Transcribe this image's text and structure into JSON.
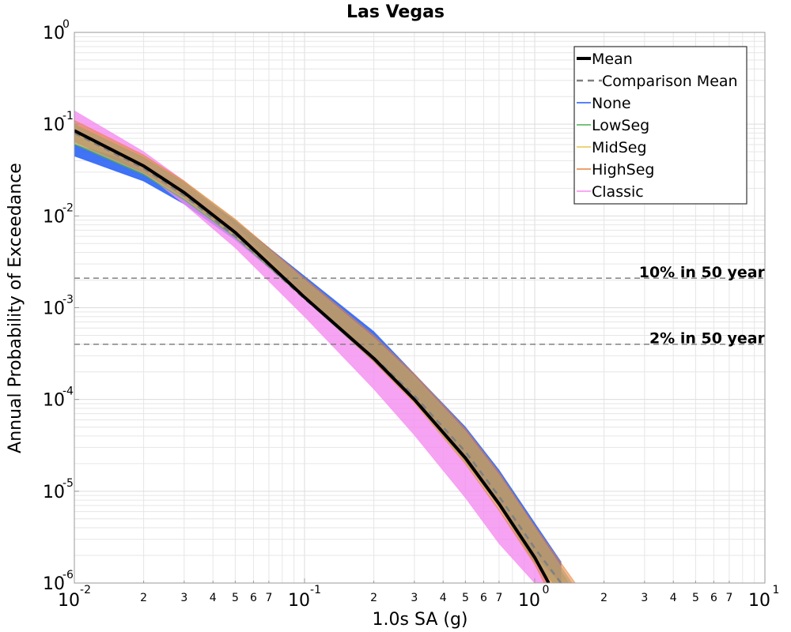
{
  "chart_data": {
    "type": "line",
    "title": "Las Vegas",
    "xlabel": "1.0s SA (g)",
    "ylabel": "Annual Probability of Exceedance",
    "xscale": "log",
    "yscale": "log",
    "xlim": [
      0.01,
      10
    ],
    "ylim": [
      1e-06,
      1
    ],
    "grid": true,
    "legend_position": "top-right",
    "x_major_ticks": [
      {
        "base": "10",
        "exp": "-2",
        "value": 0.01
      },
      {
        "base": "10",
        "exp": "-1",
        "value": 0.1
      },
      {
        "base": "10",
        "exp": "0",
        "value": 1
      },
      {
        "base": "10",
        "exp": "1",
        "value": 10
      }
    ],
    "x_minor_tick_labels": [
      "2",
      "3",
      "4",
      "5",
      "6",
      "7"
    ],
    "y_major_ticks": [
      {
        "base": "10",
        "exp": "0",
        "value": 1
      },
      {
        "base": "10",
        "exp": "-1",
        "value": 0.1
      },
      {
        "base": "10",
        "exp": "-2",
        "value": 0.01
      },
      {
        "base": "10",
        "exp": "-3",
        "value": 0.001
      },
      {
        "base": "10",
        "exp": "-4",
        "value": 0.0001
      },
      {
        "base": "10",
        "exp": "-5",
        "value": 1e-05
      },
      {
        "base": "10",
        "exp": "-6",
        "value": 1e-06
      }
    ],
    "reference_lines": [
      {
        "label": "10% in 50 year",
        "y": 0.0021
      },
      {
        "label": "2% in 50 year",
        "y": 0.0004
      }
    ],
    "legend": [
      {
        "name": "Mean",
        "style": "solid-thick"
      },
      {
        "name": "Comparison Mean",
        "style": "dashed"
      },
      {
        "name": "None",
        "style": "solid"
      },
      {
        "name": "LowSeg",
        "style": "solid"
      },
      {
        "name": "MidSeg",
        "style": "solid"
      },
      {
        "name": "HighSeg",
        "style": "solid"
      },
      {
        "name": "Classic",
        "style": "solid"
      }
    ],
    "series": [
      {
        "name": "Mean",
        "x": [
          0.01,
          0.02,
          0.03,
          0.05,
          0.1,
          0.2,
          0.3,
          0.5,
          0.7,
          1.0,
          1.15
        ],
        "y": [
          0.085,
          0.035,
          0.018,
          0.0066,
          0.0013,
          0.00028,
          0.0001,
          2.3e-05,
          7.3e-06,
          1.9e-06,
          1e-06
        ]
      },
      {
        "name": "Comparison Mean",
        "x": [
          0.01,
          0.02,
          0.03,
          0.05,
          0.1,
          0.2,
          0.3,
          0.5,
          0.7,
          1.0,
          1.3
        ],
        "y": [
          0.08,
          0.033,
          0.0168,
          0.006,
          0.00125,
          0.00029,
          0.00011,
          2.7e-05,
          8.8e-06,
          2.4e-06,
          1e-06
        ]
      },
      {
        "name": "None",
        "lower": {
          "x": [
            0.01,
            0.02,
            0.03,
            0.05,
            0.1,
            0.2,
            0.3,
            0.5,
            0.7,
            1.0,
            1.3
          ],
          "y": [
            0.045,
            0.024,
            0.0135,
            0.0055,
            0.0013,
            0.00027,
            0.0001,
            2.4e-05,
            7.8e-06,
            2e-06,
            1e-06
          ]
        },
        "upper": {
          "x": [
            0.01,
            0.02,
            0.03,
            0.05,
            0.1,
            0.2,
            0.3,
            0.5,
            0.7,
            1.0,
            1.3
          ],
          "y": [
            0.06,
            0.036,
            0.021,
            0.0088,
            0.0022,
            0.00055,
            0.00019,
            5e-05,
            1.7e-05,
            4.5e-06,
            1.7e-06
          ]
        }
      },
      {
        "name": "LowSeg",
        "lower": {
          "x": [
            0.01,
            0.02,
            0.03,
            0.05,
            0.1,
            0.2,
            0.3,
            0.5,
            0.7,
            1.0,
            1.2
          ],
          "y": [
            0.06,
            0.028,
            0.015,
            0.0058,
            0.00125,
            0.00026,
            9.5e-05,
            2.1e-05,
            6.8e-06,
            1.7e-06,
            1e-06
          ]
        },
        "upper": {
          "x": [
            0.01,
            0.02,
            0.03,
            0.05,
            0.1,
            0.2,
            0.3,
            0.5,
            0.7,
            1.0,
            1.4
          ],
          "y": [
            0.1,
            0.043,
            0.023,
            0.0087,
            0.0019,
            0.00045,
            0.00017,
            4.2e-05,
            1.4e-05,
            3.8e-06,
            1e-06
          ]
        }
      },
      {
        "name": "MidSeg",
        "lower": {
          "x": [
            0.01,
            0.02,
            0.03,
            0.05,
            0.1,
            0.2,
            0.3,
            0.5,
            0.7,
            1.0,
            1.2
          ],
          "y": [
            0.062,
            0.029,
            0.0155,
            0.006,
            0.0013,
            0.00027,
            0.0001,
            2.2e-05,
            7e-06,
            1.8e-06,
            1e-06
          ]
        },
        "upper": {
          "x": [
            0.01,
            0.02,
            0.03,
            0.05,
            0.1,
            0.2,
            0.3,
            0.5,
            0.7,
            1.0,
            1.45
          ],
          "y": [
            0.1,
            0.044,
            0.0235,
            0.009,
            0.002,
            0.00047,
            0.00018,
            4.5e-05,
            1.5e-05,
            4e-06,
            1e-06
          ]
        }
      },
      {
        "name": "HighSeg",
        "lower": {
          "x": [
            0.01,
            0.02,
            0.03,
            0.05,
            0.1,
            0.2,
            0.3,
            0.5,
            0.7,
            1.0,
            1.1
          ],
          "y": [
            0.065,
            0.03,
            0.016,
            0.0062,
            0.0013,
            0.00026,
            9.2e-05,
            2e-05,
            6.2e-06,
            1.6e-06,
            1e-06
          ]
        },
        "upper": {
          "x": [
            0.01,
            0.02,
            0.03,
            0.05,
            0.1,
            0.2,
            0.3,
            0.5,
            0.7,
            1.0,
            1.5
          ],
          "y": [
            0.11,
            0.046,
            0.024,
            0.0092,
            0.0021,
            0.0005,
            0.00019,
            4.8e-05,
            1.6e-05,
            4.2e-06,
            1e-06
          ]
        }
      },
      {
        "name": "Classic",
        "lower": {
          "x": [
            0.01,
            0.02,
            0.03,
            0.05,
            0.1,
            0.2,
            0.3,
            0.5,
            0.7,
            1.0
          ],
          "y": [
            0.085,
            0.03,
            0.0135,
            0.0045,
            0.0008,
            0.00013,
            4.1e-05,
            8.5e-06,
            2.7e-06,
            1e-06
          ]
        },
        "upper": {
          "x": [
            0.01,
            0.02,
            0.03,
            0.05,
            0.1,
            0.2,
            0.3,
            0.5,
            0.7,
            1.0,
            1.15
          ],
          "y": [
            0.14,
            0.05,
            0.024,
            0.0078,
            0.0014,
            0.00026,
            9e-05,
            2e-05,
            6.3e-06,
            1.7e-06,
            1e-06
          ]
        }
      }
    ]
  },
  "colors": {
    "mean": "#000000",
    "comparison_mean": "#808080",
    "None": "#1f5af5",
    "LowSeg": "#4caf50",
    "MidSeg": "#e6c84a",
    "HighSeg": "#e8823a",
    "Classic": "#f58cf0",
    "gray_band": "#9a9aa6",
    "grid": "#e6e6e6",
    "reference_line": "#808080"
  }
}
